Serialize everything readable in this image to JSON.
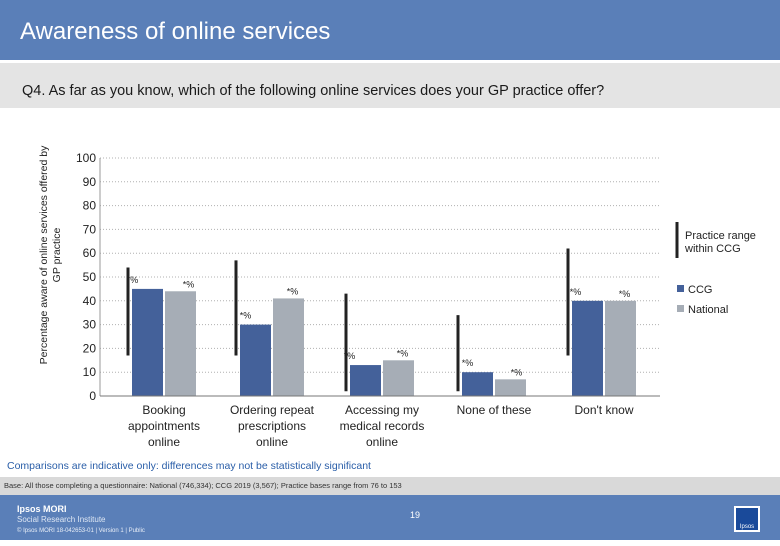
{
  "header": {
    "title": "Awareness of online services"
  },
  "question": {
    "text": "Q4. As far as you know, which of the following online services does your GP practice offer?"
  },
  "chart_data": {
    "type": "bar",
    "ylabel": "Percentage aware of online services offered by GP practice",
    "ylim": [
      0,
      100
    ],
    "yticks": [
      0,
      10,
      20,
      30,
      40,
      50,
      60,
      70,
      80,
      90,
      100
    ],
    "categories": [
      [
        "Booking",
        "appointments",
        "online"
      ],
      [
        "Ordering repeat",
        "prescriptions",
        "online"
      ],
      [
        "Accessing my",
        "medical records",
        "online"
      ],
      [
        "None of these"
      ],
      [
        "Don't know"
      ]
    ],
    "series": [
      {
        "name": "CCG",
        "color": "#44619a",
        "values": [
          45,
          30,
          13,
          10,
          40
        ],
        "labels": [
          "*%",
          "*%",
          "*%",
          "*%",
          "*%"
        ]
      },
      {
        "name": "National",
        "color": "#a6adb6",
        "values": [
          44,
          41,
          15,
          7,
          40
        ],
        "labels": [
          "*%",
          "*%",
          "*%",
          "*%",
          "*%"
        ]
      }
    ],
    "range_series": {
      "name": "Practice range within CCG",
      "color": "#222222",
      "lows": [
        17,
        17,
        2,
        2,
        17
      ],
      "highs": [
        54,
        57,
        43,
        34,
        62
      ]
    },
    "legend": {
      "range_label": [
        "Practice range",
        "within CCG"
      ],
      "position": "right"
    }
  },
  "notes": {
    "comparisons": "Comparisons are indicative only: differences may not be statistically significant",
    "base": "Base: All those completing a questionnaire: National (746,334); CCG 2019 (3,567); Practice bases range from 76 to 153"
  },
  "footer": {
    "logo_name": "Ipsos MORI",
    "logo_sub": "Social Research Institute",
    "copyright": "© Ipsos MORI     18-042653-01 | Version 1 | Public",
    "page": "19",
    "brand_badge": "Ipsos"
  }
}
